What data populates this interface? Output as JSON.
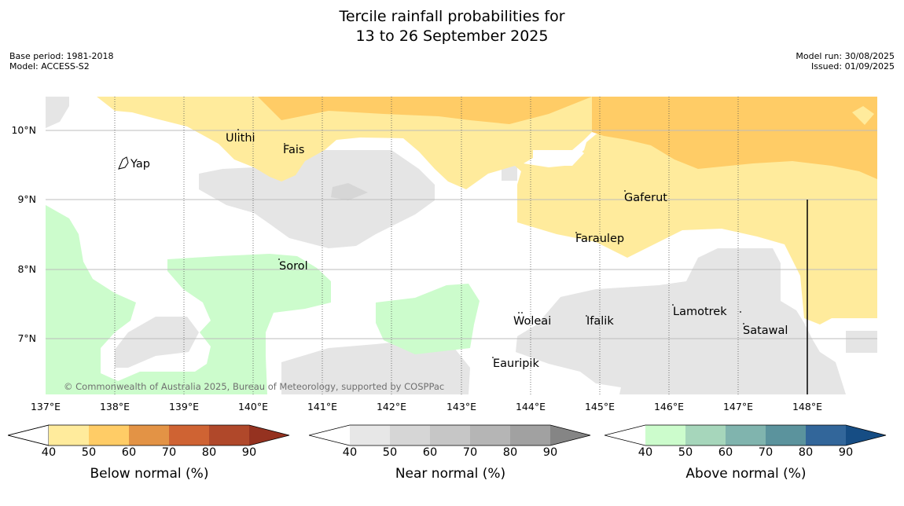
{
  "header": {
    "title_line1": "Tercile rainfall probabilities for",
    "title_line2": "13 to 26 September 2025",
    "base_period": "Base period: 1981-2018",
    "model": "Model: ACCESS-S2",
    "model_run": "Model run: 30/08/2025",
    "issued": "Issued: 01/09/2025"
  },
  "map": {
    "lon_labels": [
      "137°E",
      "138°E",
      "139°E",
      "140°E",
      "141°E",
      "142°E",
      "143°E",
      "144°E",
      "145°E",
      "146°E",
      "147°E",
      "148°E"
    ],
    "lat_labels": [
      "10°N",
      "9°N",
      "8°N",
      "7°N"
    ],
    "places": {
      "yap": "Yap",
      "ulithi": "Ulithi",
      "fais": "Fais",
      "gaferut": "Gaferut",
      "faraulep": "Faraulep",
      "sorol": "Sorol",
      "lamotrek": "Lamotrek",
      "woleai": "Woleai",
      "ifalik": "Ifalik",
      "satawal": "Satawal",
      "eauripik": "Eauripik"
    },
    "copyright": "© Commonwealth of Australia 2025, Bureau of Meteorology, supported by COSPPac",
    "colors": {
      "below_40": "#ffeb9c",
      "below_50": "#ffcc66",
      "near_40": "#e5e5e5",
      "near_50": "#d6d6d6",
      "above_40": "#ccfccc"
    }
  },
  "legend": {
    "ticks": [
      "40",
      "50",
      "60",
      "70",
      "80",
      "90"
    ],
    "below": {
      "title": "Below normal (%)",
      "colors": [
        "#ffeb9c",
        "#ffcc66",
        "#e39345",
        "#cf6333",
        "#b0482a",
        "#953220"
      ]
    },
    "near": {
      "title": "Near normal (%)",
      "colors": [
        "#e7e7e7",
        "#d6d6d6",
        "#c6c6c6",
        "#b5b5b5",
        "#a1a1a1",
        "#858585"
      ]
    },
    "above": {
      "title": "Above normal (%)",
      "colors": [
        "#ccfccc",
        "#a6d6bb",
        "#80b4ae",
        "#5b939d",
        "#32669a",
        "#164d84"
      ]
    }
  }
}
